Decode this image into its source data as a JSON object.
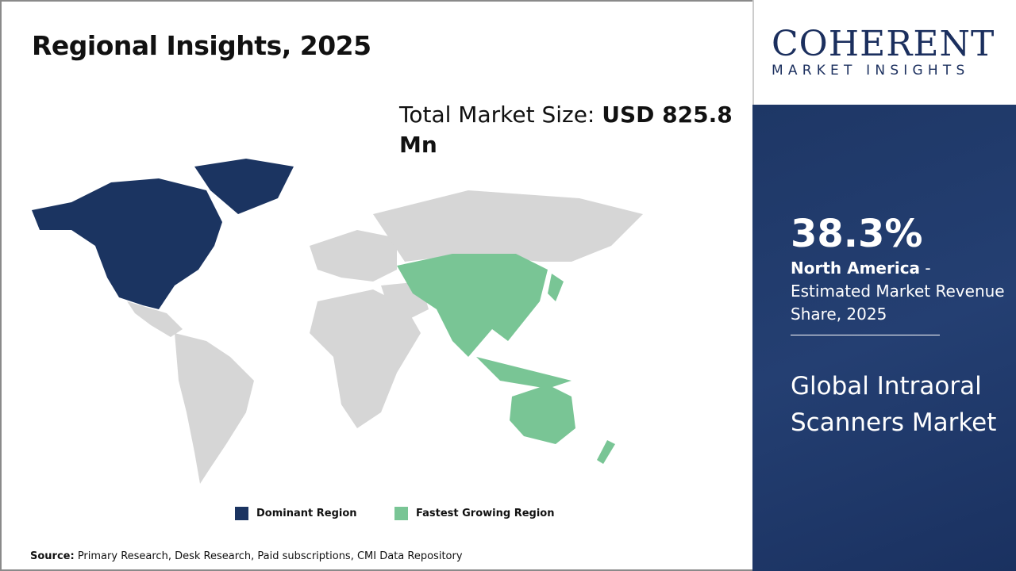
{
  "header": {
    "title": "Regional Insights, 2025"
  },
  "market_size": {
    "label": "Total Market Size: ",
    "value": "USD 825.8 Mn"
  },
  "legend": [
    {
      "label": "Dominant Region",
      "color": "#1b3461"
    },
    {
      "label": "Fastest Growing Region",
      "color": "#79c595"
    }
  ],
  "source": {
    "label": "Source:",
    "text": " Primary Research, Desk Research, Paid subscriptions, CMI Data Repository"
  },
  "logo": {
    "brand": "COHERENT",
    "sub": "MARKET INSIGHTS"
  },
  "panel": {
    "share": "38.3%",
    "region": "North America",
    "desc": " - Estimated Market Revenue Share, 2025",
    "market": "Global Intraoral Scanners Market"
  },
  "map": {
    "dominant_region": "North America",
    "fastest_growing_region": "Asia Pacific",
    "other_color": "#d6d6d6"
  }
}
